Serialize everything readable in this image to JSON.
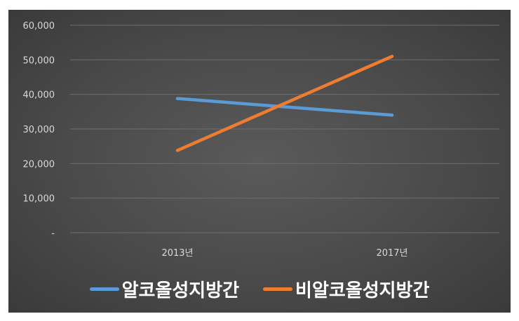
{
  "chart_data": {
    "type": "line",
    "title": "",
    "xlabel": "",
    "ylabel": "",
    "categories": [
      "2013년",
      "2017년"
    ],
    "ylim": [
      0,
      60000
    ],
    "y_ticks": [
      0,
      10000,
      20000,
      30000,
      40000,
      50000,
      60000
    ],
    "y_tick_labels": [
      "-",
      "10,000",
      "20,000",
      "30,000",
      "40,000",
      "50,000",
      "60,000"
    ],
    "grid": true,
    "legend_position": "bottom",
    "series": [
      {
        "name": "알코올성지방간",
        "values": [
          38800,
          34000
        ],
        "color": "#5b9bd5"
      },
      {
        "name": "비알코올성지방간",
        "values": [
          23800,
          51000
        ],
        "color": "#ed7d31"
      }
    ]
  }
}
